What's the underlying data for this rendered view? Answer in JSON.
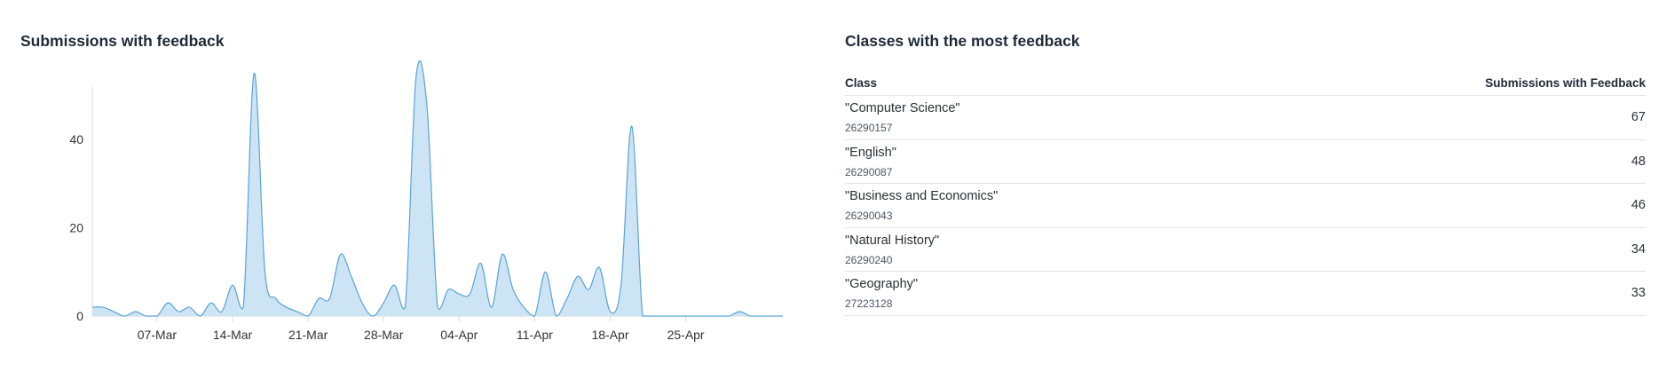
{
  "left_panel": {
    "title": "Submissions with feedback"
  },
  "right_panel": {
    "title": "Classes with the most feedback",
    "columns": {
      "class": "Class",
      "count": "Submissions with Feedback"
    },
    "rows": [
      {
        "name": "\"Computer Science\"",
        "id": "26290157",
        "count": "67"
      },
      {
        "name": "\"English\"",
        "id": "26290087",
        "count": "48"
      },
      {
        "name": "\"Business and Economics\"",
        "id": "26290043",
        "count": "46"
      },
      {
        "name": "\"Natural History\"",
        "id": "26290240",
        "count": "34"
      },
      {
        "name": "\"Geography\"",
        "id": "27223128",
        "count": "33"
      }
    ]
  },
  "chart_data": {
    "type": "area",
    "title": "Submissions with feedback",
    "xlabel": "",
    "ylabel": "",
    "ylim": [
      0,
      55
    ],
    "yticks": [
      0,
      20,
      40
    ],
    "xticks": [
      "07-Mar",
      "14-Mar",
      "21-Mar",
      "28-Mar",
      "04-Apr",
      "11-Apr",
      "18-Apr",
      "25-Apr"
    ],
    "xtick_dates": [
      "2022-03-07",
      "2022-03-14",
      "2022-03-21",
      "2022-03-28",
      "2022-04-04",
      "2022-04-11",
      "2022-04-18",
      "2022-04-25"
    ],
    "x": [
      "2022-03-01",
      "2022-03-02",
      "2022-03-03",
      "2022-03-04",
      "2022-03-05",
      "2022-03-06",
      "2022-03-07",
      "2022-03-08",
      "2022-03-09",
      "2022-03-10",
      "2022-03-11",
      "2022-03-12",
      "2022-03-13",
      "2022-03-14",
      "2022-03-15",
      "2022-03-16",
      "2022-03-17",
      "2022-03-18",
      "2022-03-19",
      "2022-03-20",
      "2022-03-21",
      "2022-03-22",
      "2022-03-23",
      "2022-03-24",
      "2022-03-25",
      "2022-03-26",
      "2022-03-27",
      "2022-03-28",
      "2022-03-29",
      "2022-03-30",
      "2022-03-31",
      "2022-04-01",
      "2022-04-02",
      "2022-04-03",
      "2022-04-04",
      "2022-04-05",
      "2022-04-06",
      "2022-04-07",
      "2022-04-08",
      "2022-04-09",
      "2022-04-10",
      "2022-04-11",
      "2022-04-12",
      "2022-04-13",
      "2022-04-14",
      "2022-04-15",
      "2022-04-16",
      "2022-04-17",
      "2022-04-18",
      "2022-04-19",
      "2022-04-20",
      "2022-04-21",
      "2022-04-22",
      "2022-04-23",
      "2022-04-24",
      "2022-04-25",
      "2022-04-26",
      "2022-04-27",
      "2022-04-28",
      "2022-04-29",
      "2022-04-30",
      "2022-05-01",
      "2022-05-02",
      "2022-05-03",
      "2022-05-04"
    ],
    "series": [
      {
        "color": "#5aa3d6",
        "fill": "#cde4f5",
        "values": [
          2,
          2,
          1,
          0,
          1,
          0,
          0,
          3,
          1,
          2,
          0,
          3,
          1,
          7,
          2,
          55,
          10,
          4,
          2,
          1,
          0,
          4,
          4,
          14,
          9,
          3,
          0,
          3,
          7,
          2,
          54,
          48,
          2,
          6,
          5,
          5,
          12,
          2,
          14,
          6,
          2,
          0,
          10,
          0,
          4,
          9,
          6,
          11,
          1,
          7,
          43,
          0,
          0,
          0,
          0,
          0,
          0,
          0,
          0,
          0,
          1,
          0,
          0,
          0,
          0
        ]
      }
    ],
    "colors": {
      "line": "#5aa3d6",
      "fill": "#cde4f5",
      "axis": "#d9d9d9"
    }
  }
}
